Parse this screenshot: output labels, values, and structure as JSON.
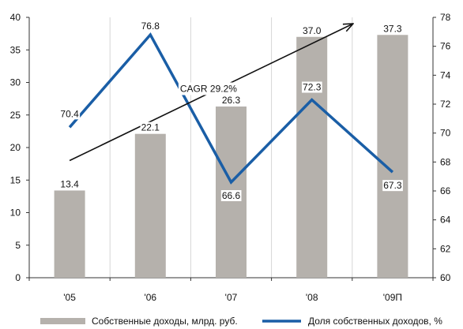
{
  "chart_data": {
    "type": "bar",
    "categories": [
      "'05",
      "'06",
      "'07",
      "'08",
      "'09П"
    ],
    "series": [
      {
        "name": "Собственные доходы, млрд. руб.",
        "type": "bar",
        "axis": "left",
        "values": [
          13.4,
          22.1,
          26.3,
          37.0,
          37.3
        ],
        "labels": [
          "13.4",
          "22.1",
          "26.3",
          "37.0",
          "37.3"
        ],
        "color": "#b5b1ac"
      },
      {
        "name": "Доля собственных доходов, %",
        "type": "line",
        "axis": "right",
        "values": [
          70.4,
          76.8,
          66.6,
          72.3,
          67.3
        ],
        "labels": [
          "70.4",
          "76.8",
          "66.6",
          "72.3",
          "67.3"
        ],
        "color": "#1a5ea6"
      }
    ],
    "y_left": {
      "min": 0,
      "max": 40,
      "ticks": [
        "0",
        "5",
        "10",
        "15",
        "20",
        "25",
        "30",
        "35",
        "40"
      ]
    },
    "y_right": {
      "min": 60,
      "max": 78,
      "ticks": [
        "60",
        "62",
        "64",
        "66",
        "68",
        "70",
        "72",
        "74",
        "76",
        "78"
      ]
    },
    "grid": "vertical",
    "legend_position": "bottom",
    "annotation": {
      "text": "CAGR 29.2%",
      "arrow_from": {
        "category": "'05",
        "left_value": 18.0
      },
      "arrow_to": {
        "category": "'09П",
        "left_value": 40.0
      }
    }
  }
}
